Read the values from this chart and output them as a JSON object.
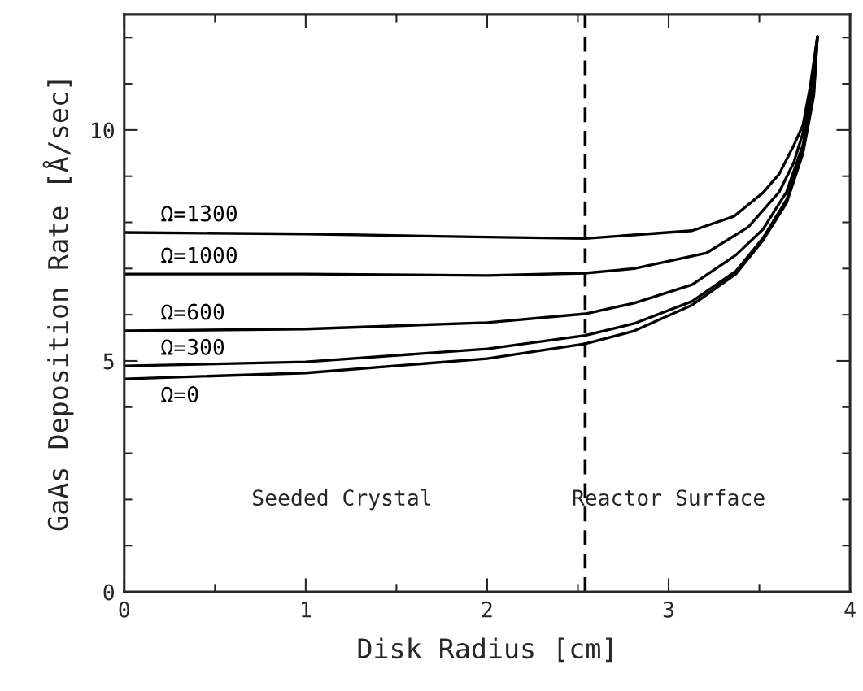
{
  "chart_data": {
    "type": "line",
    "xlabel": "Disk Radius [cm]",
    "ylabel": "GaAs Deposition Rate [Å/sec]",
    "xlim": [
      0,
      4
    ],
    "ylim": [
      0,
      12.5
    ],
    "xticks": [
      0,
      {
        "value": 0.5,
        "label": null
      },
      1,
      {
        "value": 1.5,
        "label": null
      },
      2,
      {
        "value": 2.5,
        "label": null
      },
      3,
      {
        "value": 3.5,
        "label": null
      },
      4
    ],
    "yticks": [
      0,
      {
        "value": 1,
        "label": null
      },
      {
        "value": 2,
        "label": null
      },
      {
        "value": 3,
        "label": null
      },
      {
        "value": 4,
        "label": null
      },
      5,
      {
        "value": 6,
        "label": null
      },
      {
        "value": 7,
        "label": null
      },
      {
        "value": 8,
        "label": null
      },
      {
        "value": 9,
        "label": null
      },
      10,
      {
        "value": 11,
        "label": null
      },
      {
        "value": 12,
        "label": null
      }
    ],
    "grid": false,
    "legend": false,
    "marker": "none",
    "line_style": "solid",
    "ref_lines": [
      {
        "axis": "x",
        "value": 2.54,
        "label": null,
        "color": "#000000",
        "line_style": "dashed"
      }
    ],
    "annotations": [
      "Seeded Crystal",
      "Reactor Surface"
    ],
    "series": [
      {
        "name": "Ω=1300",
        "color": "#000000",
        "x": [
          0,
          1,
          2,
          2.54,
          3.13,
          3.36,
          3.52,
          3.61,
          3.69,
          3.74,
          3.78,
          3.82
        ],
        "values": [
          7.78,
          7.75,
          7.68,
          7.65,
          7.82,
          8.13,
          8.64,
          9.05,
          9.67,
          10.1,
          10.93,
          12.02
        ]
      },
      {
        "name": "Ω=1000",
        "color": "#000000",
        "x": [
          0,
          1,
          2,
          2.54,
          2.81,
          3.21,
          3.44,
          3.61,
          3.69,
          3.74,
          3.78,
          3.82
        ],
        "values": [
          6.88,
          6.88,
          6.85,
          6.9,
          7.0,
          7.34,
          7.9,
          8.66,
          9.3,
          9.93,
          10.74,
          12.02
        ]
      },
      {
        "name": "Ω=600",
        "color": "#000000",
        "x": [
          0,
          1,
          2,
          2.54,
          2.81,
          3.13,
          3.37,
          3.52,
          3.65,
          3.74,
          3.8,
          3.82
        ],
        "values": [
          5.65,
          5.69,
          5.83,
          6.02,
          6.25,
          6.65,
          7.29,
          7.85,
          8.66,
          9.67,
          10.93,
          12.02
        ]
      },
      {
        "name": "Ω=300",
        "color": "#000000",
        "x": [
          0,
          1,
          2,
          2.54,
          2.81,
          3.13,
          3.37,
          3.52,
          3.65,
          3.74,
          3.8,
          3.82
        ],
        "values": [
          4.89,
          4.98,
          5.26,
          5.55,
          5.81,
          6.29,
          6.94,
          7.66,
          8.49,
          9.54,
          10.81,
          12.02
        ]
      },
      {
        "name": "Ω=0",
        "color": "#000000",
        "x": [
          0,
          1,
          2,
          2.54,
          2.81,
          3.13,
          3.37,
          3.52,
          3.65,
          3.74,
          3.8,
          3.82
        ],
        "values": [
          4.61,
          4.74,
          5.05,
          5.37,
          5.65,
          6.21,
          6.88,
          7.61,
          8.42,
          9.49,
          10.74,
          12.02
        ]
      }
    ]
  }
}
